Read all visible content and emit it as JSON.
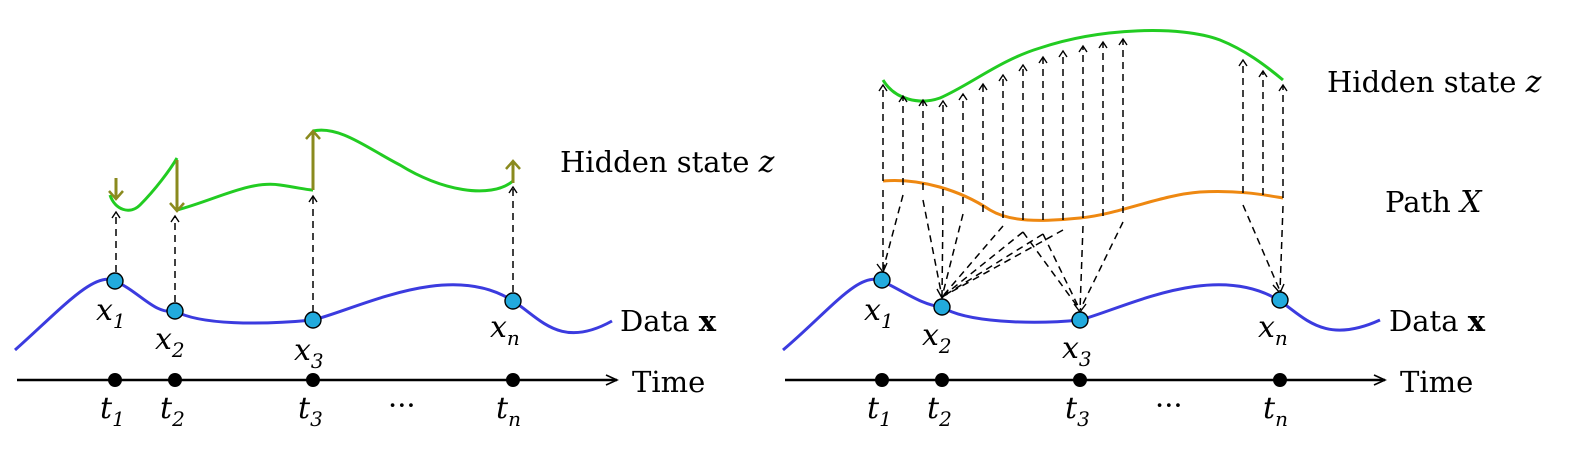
{
  "left_panel": {
    "hidden_label": "Hidden state",
    "hidden_var": "z",
    "data_label": "Data",
    "data_var": "x",
    "time_label": "Time",
    "ellipsis": "···",
    "points": [
      {
        "var": "x",
        "sub": "1"
      },
      {
        "var": "x",
        "sub": "2"
      },
      {
        "var": "x",
        "sub": "3"
      },
      {
        "var": "x",
        "sub": "n"
      }
    ],
    "ticks": [
      {
        "var": "t",
        "sub": "1"
      },
      {
        "var": "t",
        "sub": "2"
      },
      {
        "var": "t",
        "sub": "3"
      },
      {
        "var": "t",
        "sub": "n"
      }
    ]
  },
  "right_panel": {
    "hidden_label": "Hidden state",
    "hidden_var": "z",
    "path_label": "Path",
    "path_var": "X",
    "data_label": "Data",
    "data_var": "x",
    "time_label": "Time",
    "ellipsis": "···",
    "points": [
      {
        "var": "x",
        "sub": "1"
      },
      {
        "var": "x",
        "sub": "2"
      },
      {
        "var": "x",
        "sub": "3"
      },
      {
        "var": "x",
        "sub": "n"
      }
    ],
    "ticks": [
      {
        "var": "t",
        "sub": "1"
      },
      {
        "var": "t",
        "sub": "2"
      },
      {
        "var": "t",
        "sub": "3"
      },
      {
        "var": "t",
        "sub": "n"
      }
    ]
  },
  "colors": {
    "data_curve": "#3b3bdf",
    "hidden_curve": "#22cc22",
    "path_curve": "#ee8811",
    "jump_arrow": "#8a8a1e",
    "point_fill": "#22aadd"
  }
}
